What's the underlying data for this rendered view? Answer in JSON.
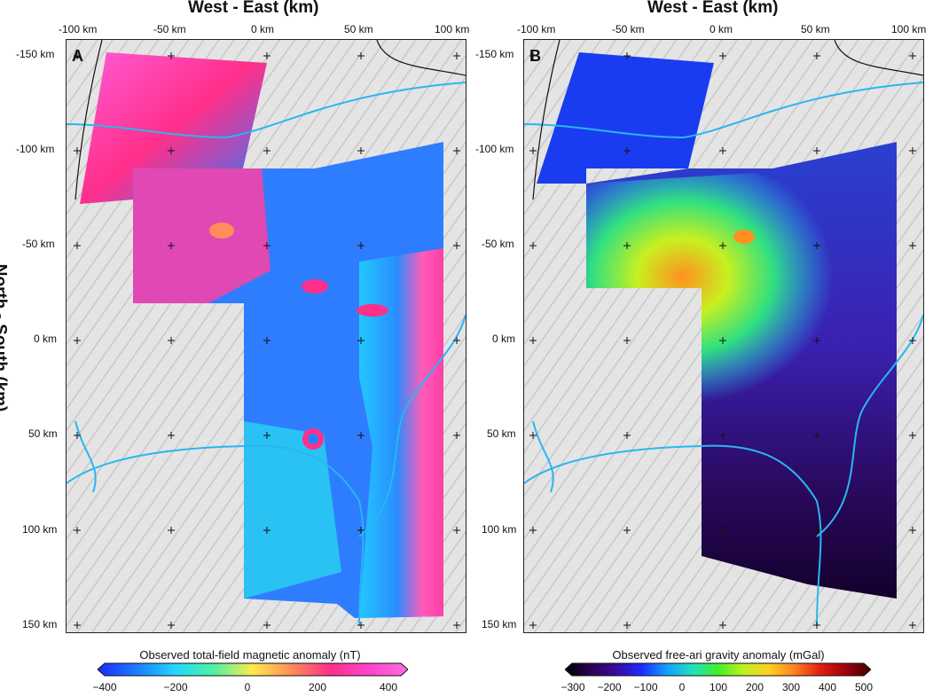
{
  "panel_a": {
    "letter": "A",
    "x_axis_title": "West - East (km)",
    "x_ticks": [
      "-100 km",
      "-50 km",
      "0 km",
      "50 km",
      "100 km"
    ],
    "y_ticks": [
      "-150 km",
      "-100 km",
      "-50 km",
      "0 km",
      "50 km",
      "100 km",
      "150 km"
    ],
    "colorbar": {
      "title": "Observed total-field magnetic anomaly (nT)",
      "labels": [
        "−400",
        "−200",
        "0",
        "200",
        "400"
      ],
      "colors": [
        "#1c2bff",
        "#1a7cff",
        "#22d8ff",
        "#4ef2a0",
        "#ffe94a",
        "#ff8c5a",
        "#ff2f8a",
        "#ff44cc",
        "#ff6be0"
      ]
    }
  },
  "panel_b": {
    "letter": "B",
    "x_axis_title": "West - East (km)",
    "x_ticks": [
      "-100 km",
      "-50 km",
      "0 km",
      "50 km",
      "100 km"
    ],
    "y_ticks": [
      "-150 km",
      "-100 km",
      "-50 km",
      "0 km",
      "50 km",
      "100 km",
      "150 km"
    ],
    "colorbar": {
      "title": "Observed free-ari gravity anomaly (mGal)",
      "labels": [
        "−300",
        "−200",
        "−100",
        "0",
        "100",
        "200",
        "300",
        "400",
        "500"
      ],
      "colors": [
        "#000000",
        "#2a0050",
        "#3a0aa0",
        "#1c2bff",
        "#12a0ff",
        "#22e0c0",
        "#3ff02a",
        "#c0f020",
        "#ffd020",
        "#ff8020",
        "#e02010",
        "#a00010",
        "#400000"
      ]
    }
  },
  "y_axis_title": "North - South (km)",
  "legend_colors": {
    "river": "#29b6f0",
    "border": "#111111",
    "hillshade": "#dcdcdc"
  }
}
